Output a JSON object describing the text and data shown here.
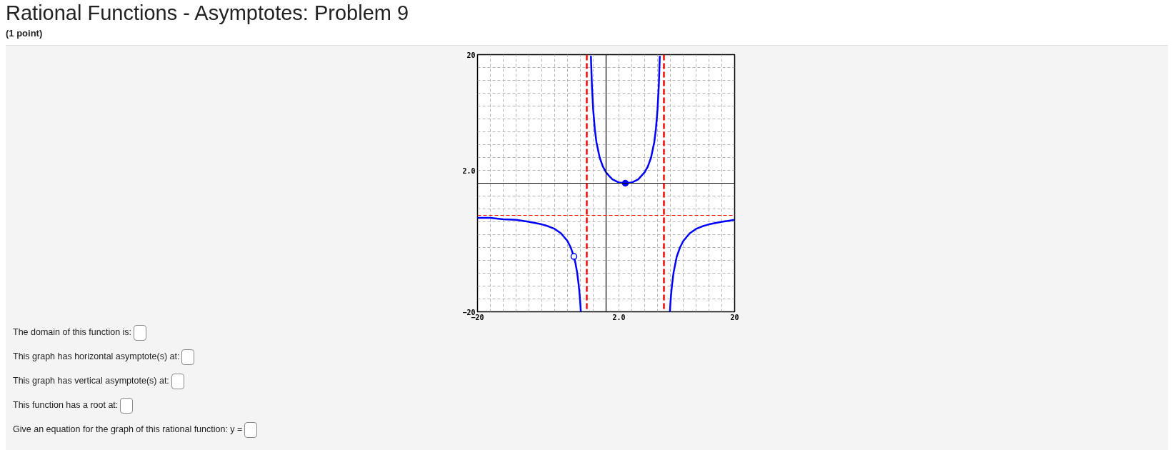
{
  "chart_data": {
    "type": "line",
    "title": "Rational Functions - Asymptotes: Problem 9",
    "subtitle": "(1 point)",
    "annotations": [
      "The domain of this function is:",
      "This graph has horizontal asymptote(s) at:",
      "This graph has vertical asymptote(s) at:",
      "This function has a root at:",
      "Give an equation for the graph of this rational function: y ="
    ],
    "xlim": [
      -20,
      20
    ],
    "ylim": [
      -20,
      20
    ],
    "xticks": [
      -20,
      {
        "value": -18,
        "label": null
      },
      {
        "value": -16,
        "label": null
      },
      {
        "value": -14,
        "label": null
      },
      {
        "value": -12,
        "label": null
      },
      {
        "value": -10,
        "label": null
      },
      {
        "value": -8,
        "label": null
      },
      {
        "value": -6,
        "label": null
      },
      {
        "value": -4,
        "label": null
      },
      {
        "value": -2,
        "label": null
      },
      {
        "value": 0,
        "label": null
      },
      {
        "value": 2,
        "label": "2.0"
      },
      {
        "value": 4,
        "label": null
      },
      {
        "value": 6,
        "label": null
      },
      {
        "value": 8,
        "label": null
      },
      {
        "value": 10,
        "label": null
      },
      {
        "value": 12,
        "label": null
      },
      {
        "value": 14,
        "label": null
      },
      {
        "value": 16,
        "label": null
      },
      {
        "value": 18,
        "label": null
      },
      20
    ],
    "yticks": [
      -20,
      {
        "value": -18,
        "label": null
      },
      {
        "value": -16,
        "label": null
      },
      {
        "value": -14,
        "label": null
      },
      {
        "value": -12,
        "label": null
      },
      {
        "value": -10,
        "label": null
      },
      {
        "value": -8,
        "label": null
      },
      {
        "value": -6,
        "label": null
      },
      {
        "value": -4,
        "label": null
      },
      {
        "value": -2,
        "label": null
      },
      {
        "value": 0,
        "label": null
      },
      {
        "value": 2,
        "label": "2.0"
      },
      {
        "value": 4,
        "label": null
      },
      {
        "value": 6,
        "label": null
      },
      {
        "value": 8,
        "label": null
      },
      {
        "value": 10,
        "label": null
      },
      {
        "value": 12,
        "label": null
      },
      {
        "value": 14,
        "label": null
      },
      {
        "value": 16,
        "label": null
      },
      {
        "value": 18,
        "label": null
      },
      20
    ],
    "grid": true,
    "series": [
      {
        "color": "#0000ff",
        "x": [
          -20,
          -18,
          -16,
          -14,
          -12,
          -10,
          -9,
          -8,
          -7,
          -6,
          -5.5,
          -5,
          -4.75,
          -4.5,
          -4.25,
          -4.1,
          -4,
          -3.93,
          -3,
          -2.36,
          -2.2,
          -2,
          -1.75,
          -1.5,
          -1,
          -0.5,
          0,
          0.5,
          1,
          2,
          3,
          4,
          5,
          6,
          6.5,
          7,
          7.5,
          7.75,
          8,
          8.2,
          8.36,
          9,
          9.93,
          10,
          10.1,
          10.25,
          10.5,
          11,
          11.5,
          12,
          13,
          14,
          15,
          16,
          18,
          20
        ],
        "values": [
          -5.4,
          -5.4,
          -5.6,
          -5.7,
          -6.0,
          -6.4,
          -6.7,
          -7.1,
          -7.8,
          -9.0,
          -10.0,
          -11.4,
          -12.5,
          -13.9,
          -15.9,
          -17.5,
          -18.8,
          -20.0,
          null,
          19.8,
          15.1,
          11.4,
          8.4,
          6.4,
          4.0,
          2.6,
          1.7,
          1.1,
          0.6,
          0.1,
          0,
          0.1,
          0.6,
          1.7,
          2.6,
          4.0,
          6.4,
          8.4,
          11.4,
          15.1,
          19.8,
          null,
          -20.0,
          -18.8,
          -17.5,
          -15.9,
          -13.9,
          -11.4,
          -10.0,
          -9.0,
          -7.8,
          -7.1,
          -6.7,
          -6.4,
          -6.0,
          -5.7
        ]
      },
      {
        "type": "scatter",
        "marker": "circle",
        "color": "#0000ff",
        "x": [
          3
        ],
        "values": [
          0
        ]
      },
      {
        "type": "scatter",
        "marker": "circle",
        "color": "#0000ff",
        "colors": [
          "#ffffff"
        ],
        "x": [
          -5
        ],
        "values": [
          -11.4
        ]
      }
    ],
    "ref_lines": [
      {
        "axis": "x",
        "value": -3,
        "color": "#ff0000",
        "line_style": "dashed"
      },
      {
        "axis": "x",
        "value": 9,
        "color": "#ff0000",
        "line_style": "dashed"
      },
      {
        "axis": "y",
        "value": -5,
        "color": "#ff0000",
        "line_style": "dashed"
      }
    ]
  }
}
